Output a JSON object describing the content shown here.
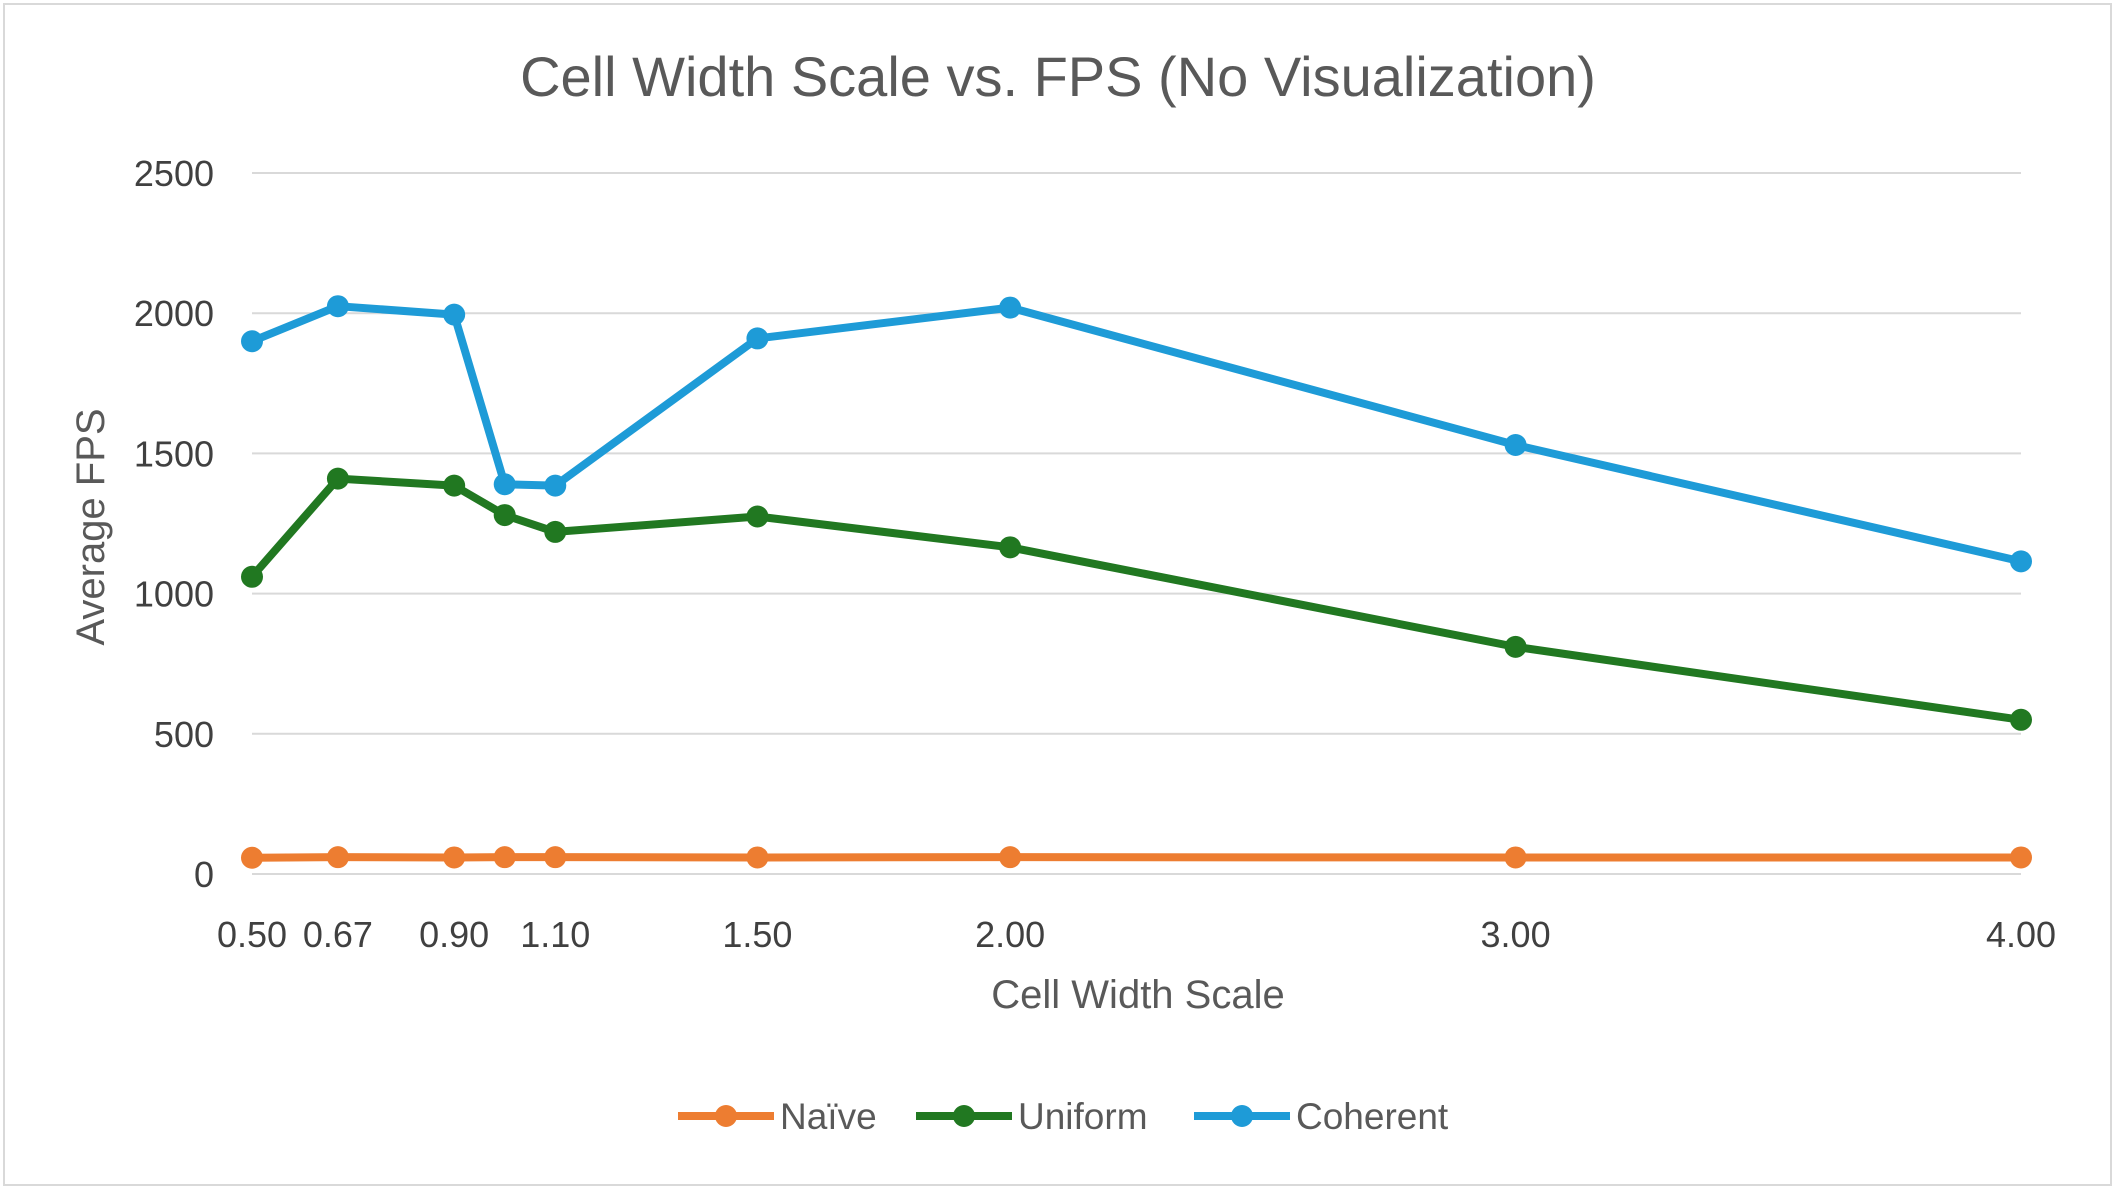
{
  "chart_data": {
    "type": "line",
    "title": "Cell Width Scale vs. FPS (No Visualization)",
    "xlabel": "Cell Width Scale",
    "ylabel": "Average FPS",
    "x": [
      0.5,
      0.67,
      0.9,
      1.0,
      1.1,
      1.5,
      2.0,
      3.0,
      4.0
    ],
    "x_tick_labels": [
      {
        "value": 0.5,
        "label": "0.50"
      },
      {
        "value": 0.67,
        "label": "0.67"
      },
      {
        "value": 0.9,
        "label": "0.90"
      },
      {
        "value": 1.1,
        "label": "1.10"
      },
      {
        "value": 1.5,
        "label": "1.50"
      },
      {
        "value": 2.0,
        "label": "2.00"
      },
      {
        "value": 3.0,
        "label": "3.00"
      },
      {
        "value": 4.0,
        "label": "4.00"
      }
    ],
    "xlim": [
      0.5,
      4.0
    ],
    "ylim": [
      0,
      2500
    ],
    "y_ticks": [
      0,
      500,
      1000,
      1500,
      2000,
      2500
    ],
    "grid": true,
    "legend_position": "bottom",
    "series": [
      {
        "name": "Naïve",
        "color": "#ed7d31",
        "values": [
          58,
          60,
          59,
          60,
          60,
          59,
          60,
          59,
          59
        ]
      },
      {
        "name": "Uniform",
        "color": "#217821",
        "values": [
          1060,
          1410,
          1385,
          1280,
          1220,
          1275,
          1165,
          810,
          550
        ]
      },
      {
        "name": "Coherent",
        "color": "#1e9bd7",
        "values": [
          1900,
          2025,
          1995,
          1390,
          1385,
          1910,
          2020,
          1530,
          1115
        ]
      }
    ]
  }
}
